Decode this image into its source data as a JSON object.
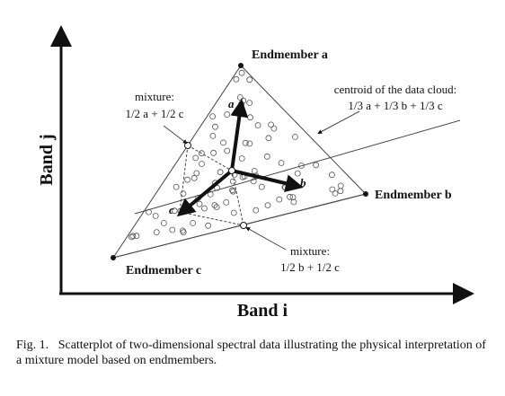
{
  "figure": {
    "y_axis_label": "Band j",
    "x_axis_label": "Band i",
    "endmembers": [
      "Endmember a",
      "Endmember b",
      "Endmember c"
    ],
    "vector_labels": [
      "a",
      "b",
      "c"
    ],
    "mixture_ac": [
      "mixture:",
      "1/2 a + 1/2 c"
    ],
    "centroid": [
      "centroid of the data cloud:",
      "1/3 a + 1/3 b + 1/3 c"
    ],
    "mixture_bc": [
      "mixture:",
      "1/2 b + 1/2 c"
    ]
  },
  "caption": {
    "number": "Fig. 1.",
    "text": "Scatterplot of two-dimensional spectral data illustrating the physical interpretation of a mixture model based on endmembers."
  }
}
